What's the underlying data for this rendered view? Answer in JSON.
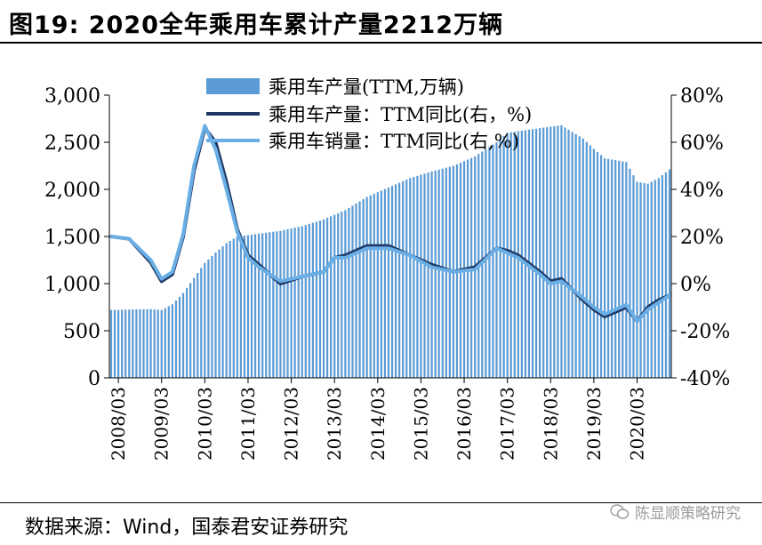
{
  "title": "图19: 2020全年乘用车累计产量2212万辆",
  "source": "数据来源：Wind，国泰君安证券研究",
  "watermark": "陈显顺策略研究",
  "colors": {
    "bar": "#5b9bd5",
    "prod_line": "#1f3864",
    "sales_line": "#6aaee6",
    "axis": "#000000"
  },
  "chart_data": {
    "type": "bar+line",
    "title": "2020全年乘用车累计产量2212万辆",
    "x_tick_labels": [
      "2008/03",
      "2009/03",
      "2010/03",
      "2011/03",
      "2012/03",
      "2013/03",
      "2014/03",
      "2015/03",
      "2016/03",
      "2017/03",
      "2018/03",
      "2019/03",
      "2020/03"
    ],
    "y_left": {
      "label": "万辆",
      "lim": [
        0,
        3000
      ],
      "ticks": [
        0,
        500,
        1000,
        1500,
        2000,
        2500,
        3000
      ],
      "tick_labels": [
        "0",
        "500",
        "1,000",
        "1,500",
        "2,000",
        "2,500",
        "3,000"
      ]
    },
    "y_right": {
      "label": "%",
      "lim": [
        -40,
        80
      ],
      "ticks": [
        -40,
        -20,
        0,
        20,
        40,
        60,
        80
      ],
      "tick_labels": [
        "-40%",
        "-20%",
        "0%",
        "20%",
        "40%",
        "60%",
        "80%"
      ]
    },
    "legend": [
      "乘用车产量(TTM,万辆)",
      "乘用车产量：TTM同比(右，%)",
      "乘用车销量：TTM同比(右,%)"
    ],
    "legend_position": "top-center",
    "series_keys": [
      {
        "name": "乘用车产量(TTM,万辆)",
        "axis": "left",
        "type": "bar",
        "points": [
          [
            "2008/01",
            720
          ],
          [
            "2008/12",
            730
          ],
          [
            "2009/03",
            720
          ],
          [
            "2009/06",
            780
          ],
          [
            "2009/09",
            900
          ],
          [
            "2009/12",
            1060
          ],
          [
            "2010/03",
            1220
          ],
          [
            "2010/06",
            1330
          ],
          [
            "2010/09",
            1430
          ],
          [
            "2010/12",
            1500
          ],
          [
            "2011/06",
            1530
          ],
          [
            "2011/12",
            1560
          ],
          [
            "2012/06",
            1610
          ],
          [
            "2012/12",
            1680
          ],
          [
            "2013/06",
            1780
          ],
          [
            "2013/12",
            1920
          ],
          [
            "2014/06",
            2020
          ],
          [
            "2014/12",
            2120
          ],
          [
            "2015/06",
            2190
          ],
          [
            "2015/12",
            2250
          ],
          [
            "2016/06",
            2350
          ],
          [
            "2016/12",
            2500
          ],
          [
            "2017/03",
            2600
          ],
          [
            "2017/12",
            2650
          ],
          [
            "2018/06",
            2680
          ],
          [
            "2018/12",
            2540
          ],
          [
            "2019/03",
            2430
          ],
          [
            "2019/06",
            2330
          ],
          [
            "2019/12",
            2290
          ],
          [
            "2020/03",
            2080
          ],
          [
            "2020/06",
            2060
          ],
          [
            "2020/09",
            2120
          ],
          [
            "2020/12",
            2212
          ]
        ]
      },
      {
        "name": "乘用车产量：TTM同比(右，%)",
        "axis": "right",
        "type": "line",
        "points": [
          [
            "2008/01",
            20
          ],
          [
            "2008/06",
            19
          ],
          [
            "2008/12",
            9
          ],
          [
            "2009/03",
            1
          ],
          [
            "2009/06",
            4
          ],
          [
            "2009/09",
            20
          ],
          [
            "2009/12",
            48
          ],
          [
            "2010/03",
            66
          ],
          [
            "2010/06",
            60
          ],
          [
            "2010/09",
            43
          ],
          [
            "2010/12",
            23
          ],
          [
            "2011/03",
            12
          ],
          [
            "2011/06",
            8
          ],
          [
            "2011/09",
            4
          ],
          [
            "2011/12",
            0
          ],
          [
            "2012/06",
            3
          ],
          [
            "2012/12",
            5
          ],
          [
            "2013/03",
            11
          ],
          [
            "2013/06",
            12
          ],
          [
            "2013/12",
            16
          ],
          [
            "2014/06",
            16
          ],
          [
            "2014/12",
            12
          ],
          [
            "2015/06",
            8
          ],
          [
            "2015/12",
            5
          ],
          [
            "2016/06",
            7
          ],
          [
            "2016/12",
            15
          ],
          [
            "2017/03",
            14
          ],
          [
            "2017/06",
            12
          ],
          [
            "2017/12",
            5
          ],
          [
            "2018/03",
            1
          ],
          [
            "2018/06",
            2
          ],
          [
            "2018/12",
            -7
          ],
          [
            "2019/03",
            -11
          ],
          [
            "2019/06",
            -14
          ],
          [
            "2019/12",
            -10
          ],
          [
            "2020/03",
            -16
          ],
          [
            "2020/06",
            -10
          ],
          [
            "2020/09",
            -7
          ],
          [
            "2020/12",
            -5
          ]
        ]
      },
      {
        "name": "乘用车销量：TTM同比(右,%)",
        "axis": "right",
        "type": "line",
        "points": [
          [
            "2008/01",
            20
          ],
          [
            "2008/06",
            19
          ],
          [
            "2008/12",
            10
          ],
          [
            "2009/03",
            2
          ],
          [
            "2009/06",
            5
          ],
          [
            "2009/09",
            21
          ],
          [
            "2009/12",
            50
          ],
          [
            "2010/03",
            67
          ],
          [
            "2010/06",
            57
          ],
          [
            "2010/09",
            40
          ],
          [
            "2010/12",
            22
          ],
          [
            "2011/03",
            11
          ],
          [
            "2011/06",
            7
          ],
          [
            "2011/09",
            4
          ],
          [
            "2011/12",
            1
          ],
          [
            "2012/06",
            3
          ],
          [
            "2012/12",
            5
          ],
          [
            "2013/03",
            11
          ],
          [
            "2013/06",
            11
          ],
          [
            "2013/12",
            15
          ],
          [
            "2014/06",
            15
          ],
          [
            "2014/12",
            12
          ],
          [
            "2015/06",
            7
          ],
          [
            "2015/12",
            5
          ],
          [
            "2016/06",
            6
          ],
          [
            "2016/12",
            15
          ],
          [
            "2017/03",
            13
          ],
          [
            "2017/06",
            11
          ],
          [
            "2017/12",
            4
          ],
          [
            "2018/03",
            0
          ],
          [
            "2018/06",
            1
          ],
          [
            "2018/12",
            -6
          ],
          [
            "2019/03",
            -10
          ],
          [
            "2019/06",
            -13
          ],
          [
            "2019/12",
            -9
          ],
          [
            "2020/03",
            -16
          ],
          [
            "2020/06",
            -11
          ],
          [
            "2020/09",
            -8
          ],
          [
            "2020/12",
            -5
          ]
        ]
      }
    ]
  }
}
